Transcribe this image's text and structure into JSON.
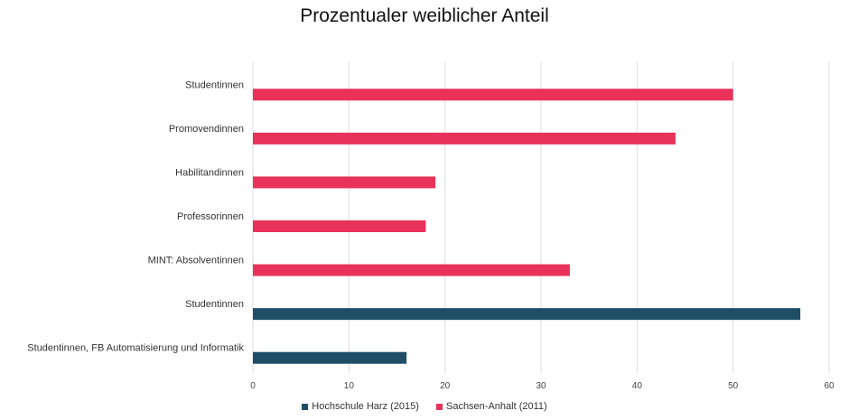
{
  "chart_data": {
    "type": "bar",
    "orientation": "horizontal",
    "title": "Prozentualer weiblicher Anteil",
    "xlabel": "",
    "ylabel": "",
    "xlim": [
      0,
      60
    ],
    "x_ticks": [
      "0",
      "10",
      "20",
      "30",
      "40",
      "50",
      "60"
    ],
    "grid": "vertical",
    "legend_position": "bottom",
    "categories": [
      "Studentinnen",
      "Promovendinnen",
      "Habilitandinnen",
      "Professorinnen",
      "MINT: Absolventinnen",
      "Studentinnen",
      "Studentinnen, FB Automatisierung und Informatik"
    ],
    "series": [
      {
        "name": "Hochschule Harz (2015)",
        "color": "#1f4e67",
        "values": [
          null,
          null,
          null,
          null,
          null,
          57,
          16
        ]
      },
      {
        "name": "Sachsen-Anhalt (2011)",
        "color": "#e8325a",
        "values": [
          50,
          44,
          19,
          18,
          33,
          null,
          null
        ]
      }
    ]
  }
}
